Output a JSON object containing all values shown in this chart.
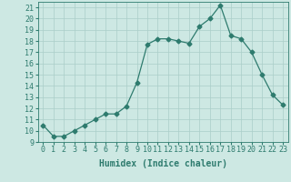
{
  "x": [
    0,
    1,
    2,
    3,
    4,
    5,
    6,
    7,
    8,
    9,
    10,
    11,
    12,
    13,
    14,
    15,
    16,
    17,
    18,
    19,
    20,
    21,
    22,
    23
  ],
  "y": [
    10.5,
    9.5,
    9.5,
    10.0,
    10.5,
    11.0,
    11.5,
    11.5,
    12.2,
    14.3,
    17.7,
    18.2,
    18.2,
    18.0,
    17.8,
    19.3,
    20.0,
    21.2,
    18.5,
    18.2,
    17.0,
    15.0,
    13.2,
    12.3
  ],
  "line_color": "#2e7b6e",
  "marker": "D",
  "marker_size": 2.5,
  "bg_color": "#cde8e3",
  "grid_color": "#aacec8",
  "xlabel": "Humidex (Indice chaleur)",
  "xlim": [
    -0.5,
    23.5
  ],
  "ylim": [
    9,
    21.5
  ],
  "yticks": [
    9,
    10,
    11,
    12,
    13,
    14,
    15,
    16,
    17,
    18,
    19,
    20,
    21
  ],
  "xticks": [
    0,
    1,
    2,
    3,
    4,
    5,
    6,
    7,
    8,
    9,
    10,
    11,
    12,
    13,
    14,
    15,
    16,
    17,
    18,
    19,
    20,
    21,
    22,
    23
  ],
  "label_fontsize": 7,
  "tick_fontsize": 6
}
